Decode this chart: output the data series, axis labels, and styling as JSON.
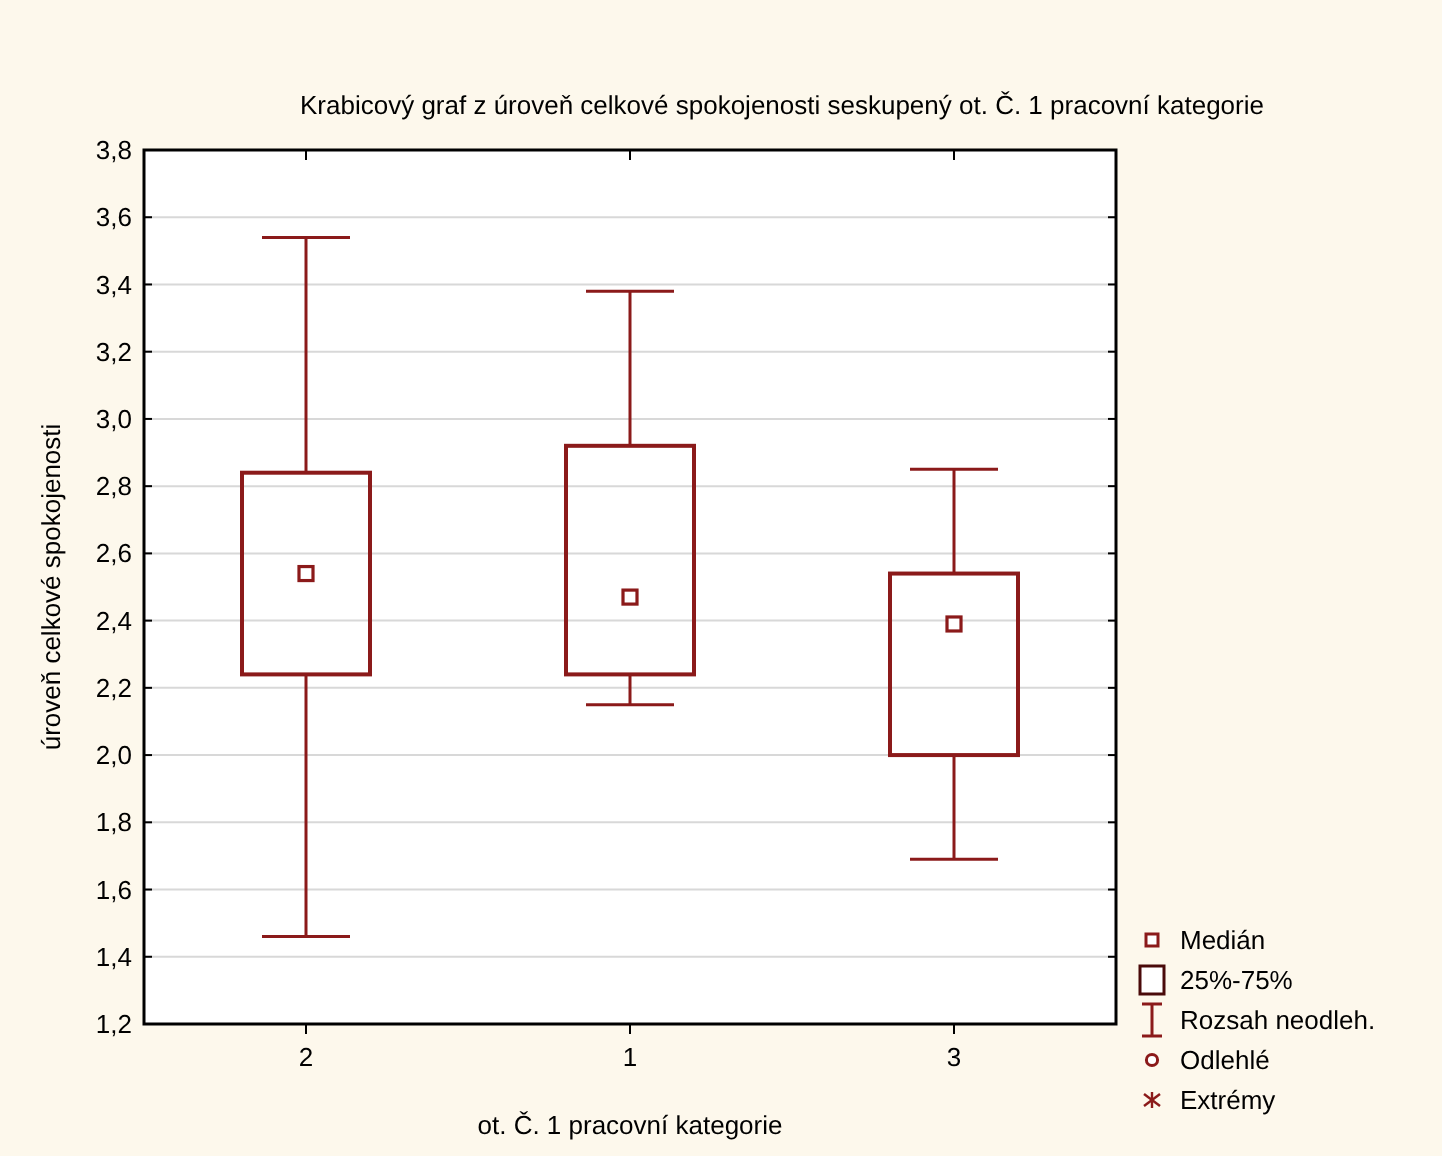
{
  "chart_data": {
    "type": "box",
    "title": "Krabicový graf z úroveň celkové spokojenosti seskupený ot. Č. 1 pracovní kategorie",
    "xlabel": "ot. Č. 1 pracovní kategorie",
    "ylabel": "úroveň celkové spokojenosti",
    "categories": [
      "2",
      "1",
      "3"
    ],
    "boxes": [
      {
        "low": 1.46,
        "q1": 2.24,
        "median": 2.54,
        "q3": 2.84,
        "high": 3.54
      },
      {
        "low": 2.15,
        "q1": 2.24,
        "median": 2.47,
        "q3": 2.92,
        "high": 3.38
      },
      {
        "low": 1.69,
        "q1": 2.0,
        "median": 2.39,
        "q3": 2.54,
        "high": 2.85
      }
    ],
    "color": "#8b1a1a",
    "marker": "square",
    "ylim": [
      1.2,
      3.8
    ],
    "yticks": [
      {
        "value": 1.2,
        "label": "1,2"
      },
      {
        "value": 1.4,
        "label": "1,4"
      },
      {
        "value": 1.6,
        "label": "1,6"
      },
      {
        "value": 1.8,
        "label": "1,8"
      },
      {
        "value": 2.0,
        "label": "2,0"
      },
      {
        "value": 2.2,
        "label": "2,2"
      },
      {
        "value": 2.4,
        "label": "2,4"
      },
      {
        "value": 2.6,
        "label": "2,6"
      },
      {
        "value": 2.8,
        "label": "2,8"
      },
      {
        "value": 3.0,
        "label": "3,0"
      },
      {
        "value": 3.2,
        "label": "3,2"
      },
      {
        "value": 3.4,
        "label": "3,4"
      },
      {
        "value": 3.6,
        "label": "3,6"
      },
      {
        "value": 3.8,
        "label": "3,8"
      }
    ],
    "grid": "y",
    "annotations": [
      "Medián",
      "25%-75%",
      "Rozsah neodleh.",
      "Odlehlé",
      "Extrémy"
    ]
  }
}
